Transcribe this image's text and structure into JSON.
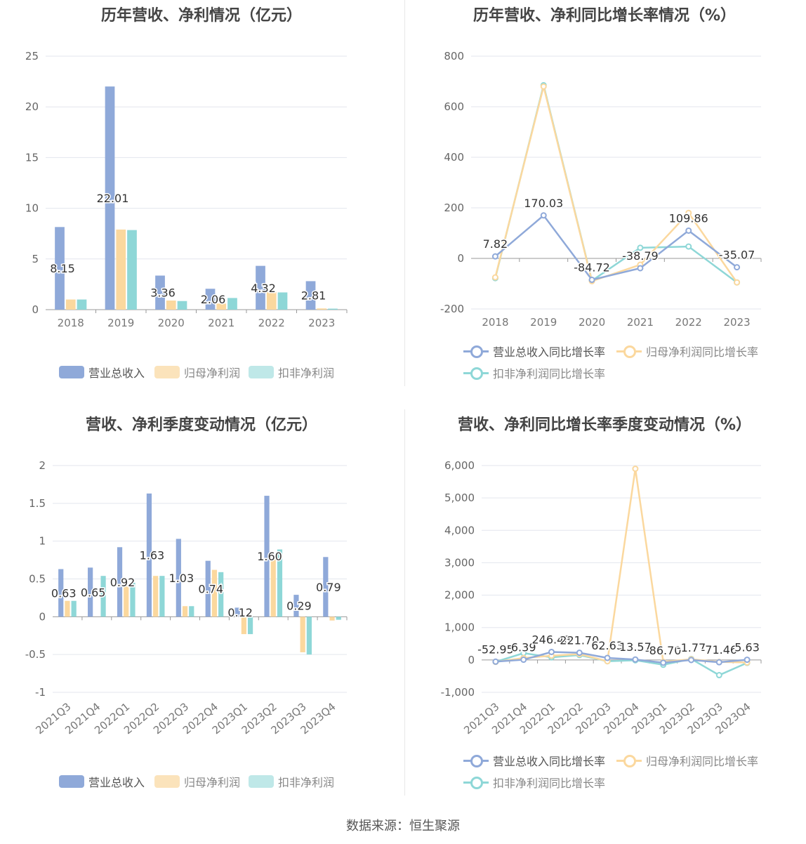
{
  "source": "数据来源：恒生聚源",
  "chart_data": [
    {
      "type": "bar",
      "title": "历年营收、净利情况（亿元）",
      "categories": [
        "2018",
        "2019",
        "2020",
        "2021",
        "2022",
        "2023"
      ],
      "ylim": [
        0,
        25
      ],
      "yticks": [
        0,
        5,
        10,
        15,
        20,
        25
      ],
      "series": [
        {
          "name": "营业总收入",
          "values": [
            8.15,
            22.01,
            3.36,
            2.06,
            4.32,
            2.81
          ],
          "color": "#8fa9d9",
          "labels": [
            "8.15",
            "22.01",
            "3.36",
            "2.06",
            "4.32",
            "2.81"
          ]
        },
        {
          "name": "归母净利润",
          "values": [
            1.0,
            7.9,
            0.9,
            0.6,
            1.75,
            0.12
          ],
          "color": "#fbd89e"
        },
        {
          "name": "扣非净利润",
          "values": [
            1.0,
            7.85,
            0.85,
            1.15,
            1.7,
            0.1
          ],
          "color": "#8ed7d7"
        }
      ]
    },
    {
      "type": "line",
      "title": "历年营收、净利同比增长率情况（%）",
      "categories": [
        "2018",
        "2019",
        "2020",
        "2021",
        "2022",
        "2023"
      ],
      "ylim": [
        -200,
        800
      ],
      "yticks": [
        -200,
        0,
        200,
        400,
        600,
        800
      ],
      "series": [
        {
          "name": "营业总收入同比增长率",
          "values": [
            7.82,
            170.03,
            -84.72,
            -38.79,
            109.86,
            -35.07
          ],
          "color": "#8fa9d9",
          "labels": [
            "7.82",
            "170.03",
            "-84.72",
            "-38.79",
            "109.86",
            "-35.07"
          ]
        },
        {
          "name": "归母净利润同比增长率",
          "values": [
            -75,
            680,
            -90,
            -25,
            180,
            -95
          ],
          "color": "#fbd89e"
        },
        {
          "name": "扣非净利润同比增长率",
          "values": [
            -78,
            685,
            -88,
            42,
            47,
            -95
          ],
          "color": "#8ed7d7"
        }
      ]
    },
    {
      "type": "bar",
      "title": "营收、净利季度变动情况（亿元）",
      "categories": [
        "2021Q3",
        "2021Q4",
        "2022Q1",
        "2022Q2",
        "2022Q3",
        "2022Q4",
        "2023Q1",
        "2023Q2",
        "2023Q3",
        "2023Q4"
      ],
      "ylim": [
        -1,
        2
      ],
      "yticks": [
        -1,
        -0.5,
        0,
        0.5,
        1,
        1.5,
        2
      ],
      "series": [
        {
          "name": "营业总收入",
          "values": [
            0.63,
            0.65,
            0.92,
            1.63,
            1.03,
            0.74,
            0.12,
            1.6,
            0.29,
            0.79
          ],
          "color": "#8fa9d9",
          "labels": [
            "0.63",
            "0.65",
            "0.92",
            "1.63",
            "1.03",
            "0.74",
            "0.12",
            "1.60",
            "0.29",
            "0.79"
          ]
        },
        {
          "name": "归母净利润",
          "values": [
            0.21,
            0.0,
            0.4,
            0.54,
            0.14,
            0.62,
            -0.23,
            0.76,
            -0.47,
            -0.05
          ],
          "color": "#fbd89e"
        },
        {
          "name": "扣非净利润",
          "values": [
            0.21,
            0.54,
            0.45,
            0.54,
            0.14,
            0.59,
            -0.23,
            0.89,
            -0.5,
            -0.04
          ],
          "color": "#8ed7d7"
        }
      ]
    },
    {
      "type": "line",
      "title": "营收、净利同比增长率季度变动情况（%）",
      "categories": [
        "2021Q3",
        "2021Q4",
        "2022Q1",
        "2022Q2",
        "2022Q3",
        "2022Q4",
        "2023Q1",
        "2023Q2",
        "2023Q3",
        "2023Q4"
      ],
      "ylim": [
        -1000,
        6000
      ],
      "yticks": [
        -1000,
        0,
        1000,
        2000,
        3000,
        4000,
        5000,
        6000
      ],
      "ytick_labels": [
        "-1,000",
        "0",
        "1,000",
        "2,000",
        "3,000",
        "4,000",
        "5,000",
        "6,000"
      ],
      "series": [
        {
          "name": "营业总收入同比增长率",
          "values": [
            -52.95,
            6.39,
            246.48,
            221.7,
            62.63,
            13.57,
            -86.7,
            -1.77,
            -71.46,
            5.63
          ],
          "color": "#8fa9d9",
          "labels": [
            "-52.95",
            "6.39",
            "246.48",
            "221.70",
            "62.63",
            "13.57",
            "-86.70",
            "-1.77",
            "-71.46",
            "5.63"
          ]
        },
        {
          "name": "归母净利润同比增长率",
          "values": [
            -60,
            60,
            130,
            180,
            -40,
            5900,
            -60,
            20,
            -60,
            -80
          ],
          "color": "#fbd89e"
        },
        {
          "name": "扣非净利润同比增长率",
          "values": [
            -60,
            210,
            80,
            150,
            -40,
            -10,
            -150,
            30,
            -470,
            -90
          ],
          "color": "#8ed7d7"
        }
      ]
    }
  ]
}
